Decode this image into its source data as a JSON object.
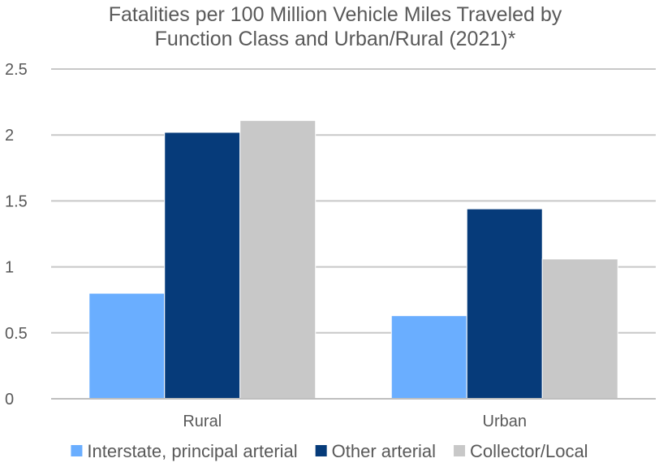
{
  "chart_data": {
    "type": "bar",
    "title_lines": [
      "Fatalities per 100 Million Vehicle Miles Traveled by",
      "Function Class and Urban/Rural (2021)*"
    ],
    "categories": [
      "Rural",
      "Urban"
    ],
    "series": [
      {
        "name": "Interstate, principal arterial",
        "color": "#6aaeff",
        "values": [
          0.8,
          0.63
        ]
      },
      {
        "name": "Other arterial",
        "color": "#063b7a",
        "values": [
          2.02,
          1.44
        ]
      },
      {
        "name": "Collector/Local",
        "color": "#c8c8c8",
        "values": [
          2.11,
          1.06
        ]
      }
    ],
    "ylim": [
      0,
      2.5
    ],
    "yticks": [
      0,
      0.5,
      1,
      1.5,
      2,
      2.5
    ],
    "ytick_labels": [
      "0",
      "0.5",
      "1",
      "1.5",
      "2",
      "2.5"
    ],
    "xlabel": "",
    "ylabel": "",
    "grid": true,
    "legend_position": "bottom"
  }
}
